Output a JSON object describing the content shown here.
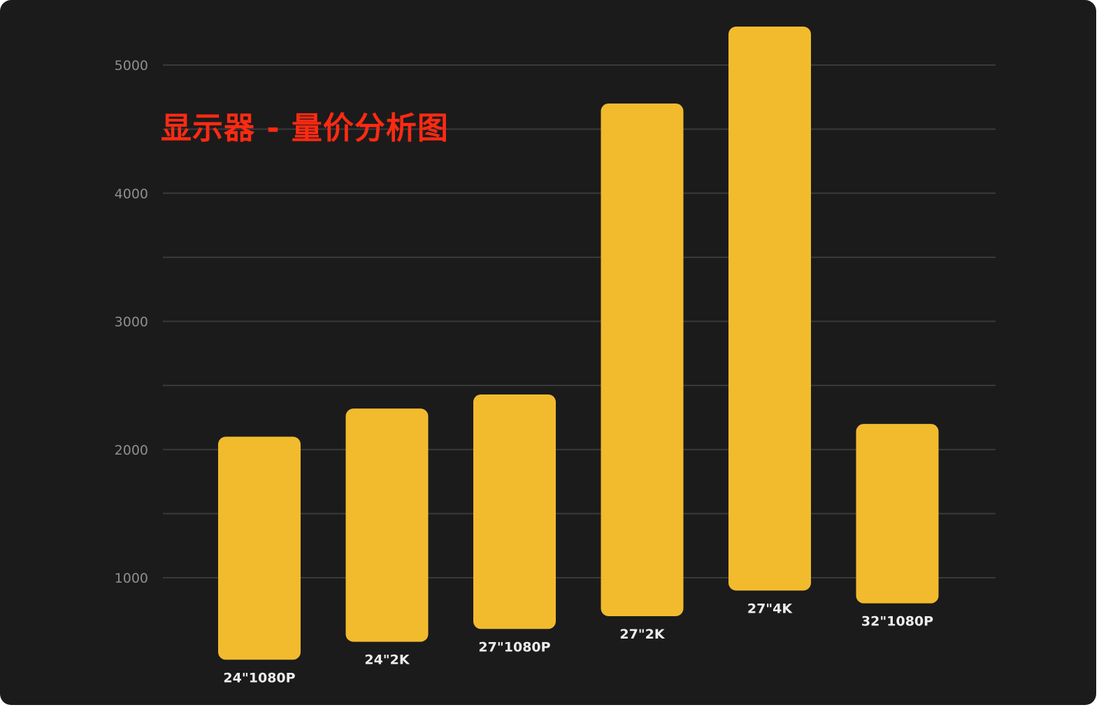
{
  "chart_data": {
    "type": "bar",
    "title": "显示器 - 量价分析图",
    "xlabel": "",
    "ylabel": "",
    "categories": [
      "24\"1080P",
      "24\"2K",
      "27\"1080P",
      "27\"2K",
      "27\"4K",
      "32\"1080P"
    ],
    "bars": [
      {
        "low": 360,
        "high": 2100
      },
      {
        "low": 500,
        "high": 2320
      },
      {
        "low": 600,
        "high": 2430
      },
      {
        "low": 700,
        "high": 4700
      },
      {
        "low": 900,
        "high": 5300
      },
      {
        "low": 800,
        "high": 2200
      }
    ],
    "yticks": [
      1000,
      2000,
      3000,
      4000,
      5000
    ],
    "ylim": [
      0,
      5500
    ],
    "grid": true,
    "colors": {
      "background": "#1b1b1c",
      "bar": "#f2bb2e",
      "title": "#ff2a12",
      "tick_label": "#8f8f8f",
      "category_label": "#ececec",
      "grid": "#3a3a3b"
    }
  }
}
